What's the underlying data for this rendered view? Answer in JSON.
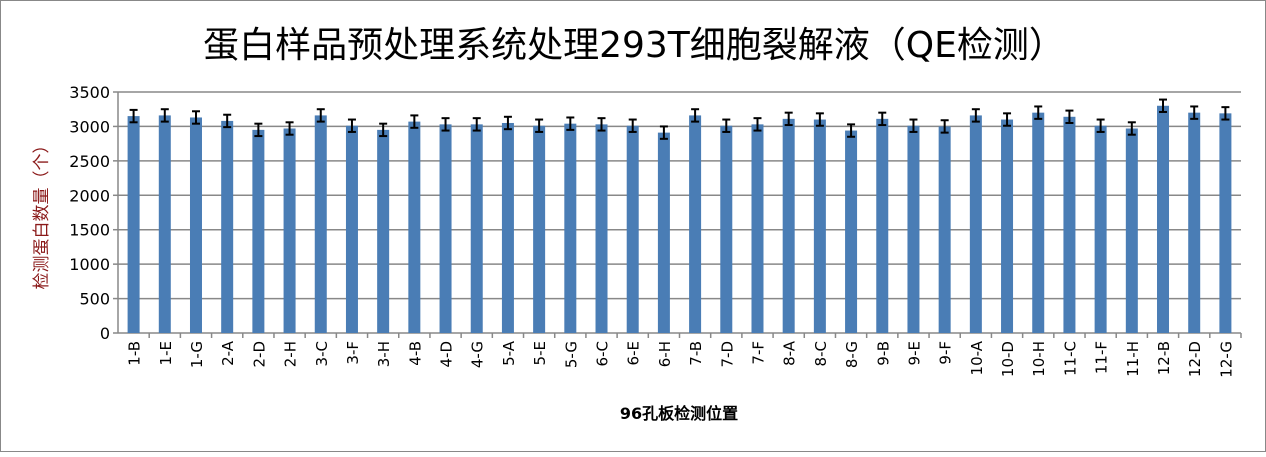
{
  "chart_data": {
    "type": "bar",
    "title": "蛋白样品预处理系统处理293T细胞裂解液（QE检测）",
    "xlabel": "96孔板检测位置",
    "ylabel": "检测蛋白数量（个）",
    "ylim": [
      0,
      3500
    ],
    "yticks": [
      0,
      500,
      1000,
      1500,
      2000,
      2500,
      3000,
      3500
    ],
    "grid": true,
    "bar_color": "#4a7db5",
    "error_bar_color": "#000000",
    "categories": [
      "1-B",
      "1-E",
      "1-G",
      "2-A",
      "2-D",
      "2-H",
      "3-C",
      "3-F",
      "3-H",
      "4-B",
      "4-D",
      "4-G",
      "5-A",
      "5-E",
      "5-G",
      "6-C",
      "6-E",
      "6-H",
      "7-B",
      "7-D",
      "7-F",
      "8-A",
      "8-C",
      "8-G",
      "9-B",
      "9-E",
      "9-F",
      "10-A",
      "10-D",
      "10-H",
      "11-C",
      "11-F",
      "11-H",
      "12-B",
      "12-D",
      "12-G"
    ],
    "values": [
      3150,
      3160,
      3130,
      3080,
      2950,
      2970,
      3160,
      3010,
      2950,
      3070,
      3030,
      3030,
      3050,
      3010,
      3040,
      3030,
      3010,
      2910,
      3160,
      3010,
      3030,
      3110,
      3100,
      2940,
      3110,
      3010,
      3000,
      3160,
      3100,
      3200,
      3140,
      3010,
      2970,
      3300,
      3200,
      3190
    ],
    "errors": [
      90,
      90,
      90,
      90,
      90,
      90,
      90,
      90,
      90,
      90,
      90,
      90,
      90,
      90,
      90,
      90,
      90,
      90,
      90,
      90,
      90,
      90,
      90,
      90,
      90,
      90,
      90,
      90,
      90,
      90,
      90,
      90,
      90,
      90,
      90,
      90
    ]
  }
}
